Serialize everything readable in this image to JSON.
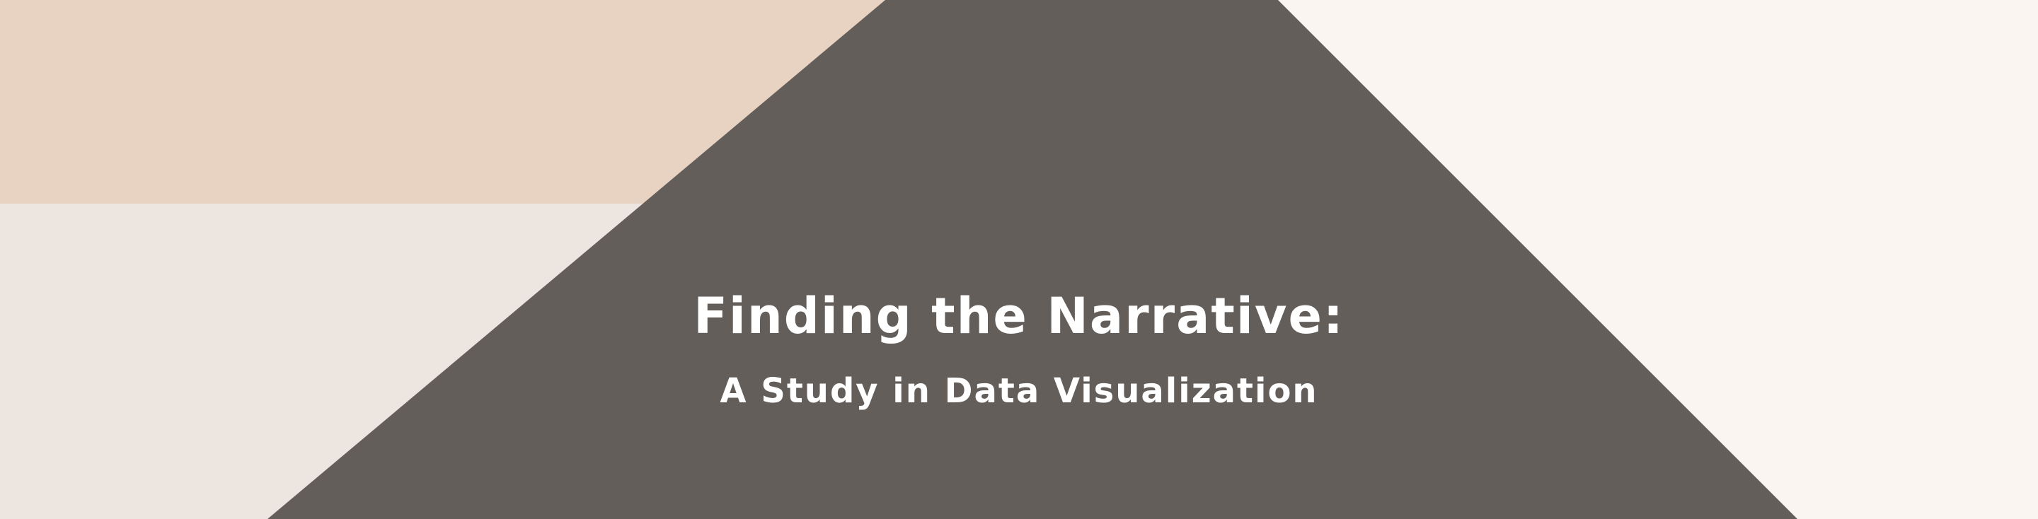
{
  "banner": {
    "title": "Finding the Narrative:",
    "subtitle": "A Study in Data Visualization",
    "colors": {
      "left_top_band": "#e8d3c2",
      "left_lower_area": "#ede5df",
      "right_area": "#faf5f0",
      "center_shape": "#645e5b",
      "text": "#ffffff"
    }
  }
}
